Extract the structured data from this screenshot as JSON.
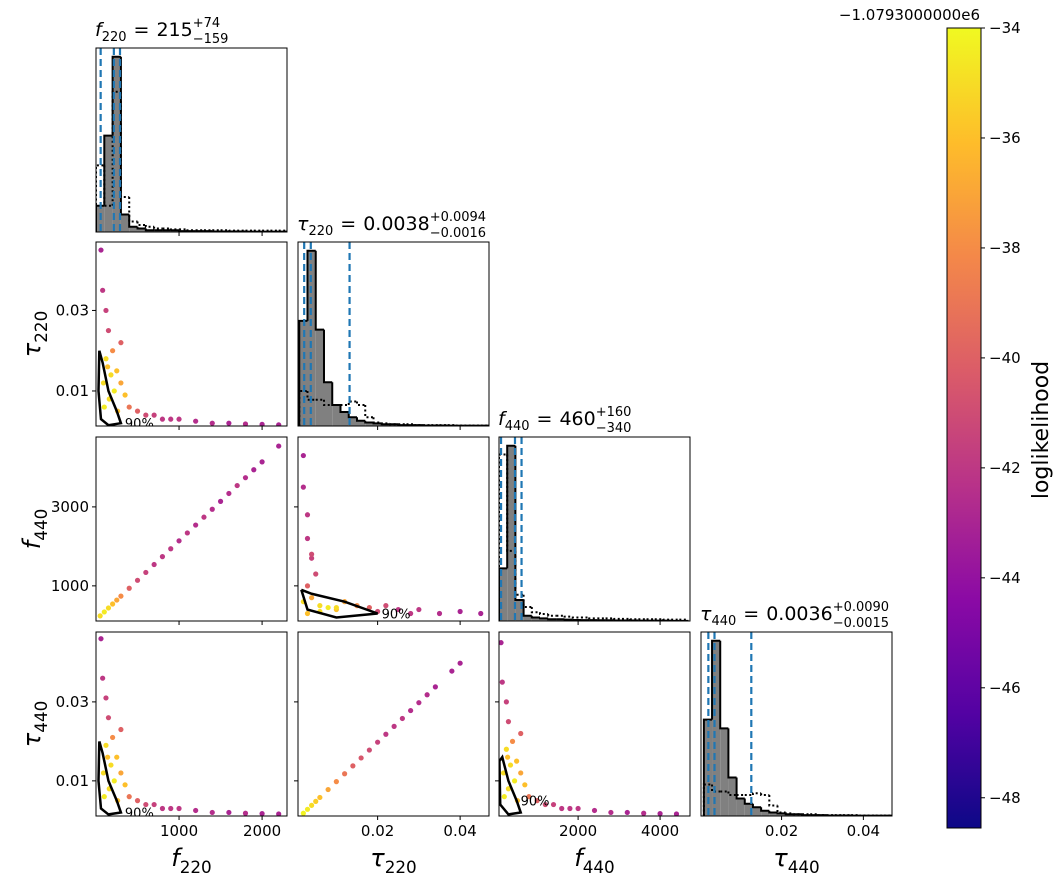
{
  "chart_data": {
    "type": "corner",
    "title_connector": "=",
    "colorbar": {
      "label": "loglikelihood",
      "offset_label": "−1.0793000000e6",
      "lim": [
        -48.55,
        -34
      ],
      "ticks": [
        {
          "value": -48,
          "label": "−48"
        },
        {
          "value": -46,
          "label": "−46"
        },
        {
          "value": -44,
          "label": "−44"
        },
        {
          "value": -42,
          "label": "−42"
        },
        {
          "value": -40,
          "label": "−40"
        },
        {
          "value": -38,
          "label": "−38"
        },
        {
          "value": -36,
          "label": "−36"
        },
        {
          "value": -34,
          "label": "−34"
        }
      ],
      "colormap": "plasma",
      "colormap_colors": [
        "#0d0887",
        "#5302a3",
        "#8b0aa5",
        "#b83289",
        "#db5c68",
        "#f48849",
        "#febd2a",
        "#f0f921"
      ]
    },
    "hist_color": "#808080",
    "quantile_color": "#1f77b4",
    "contour_color": "#000000",
    "parameters": [
      {
        "symbol": "f",
        "subscript": "220",
        "xlim": [
          0,
          2300
        ],
        "xticks": [
          1000,
          2000
        ],
        "median": 215,
        "upper": {
          "value": 74,
          "label": "+74"
        },
        "lower": {
          "value": -159,
          "label": "−159"
        },
        "hist_ylim": [
          0,
          105
        ],
        "bins": [
          0,
          100,
          200,
          300,
          400,
          500,
          600,
          700,
          800,
          900,
          1000,
          1100,
          1200,
          1300,
          1400,
          1500,
          1600,
          1700,
          1800,
          1900,
          2000,
          2100,
          2200,
          2300
        ],
        "counts": [
          15,
          55,
          100,
          10,
          3,
          2,
          1,
          1,
          1,
          1,
          0.5,
          0.5,
          0.5,
          0.5,
          0.3,
          0.3,
          0.3,
          0.3,
          0.2,
          0.2,
          0.2,
          0.2,
          0.2
        ],
        "prior_counts": [
          38,
          15,
          80,
          20,
          6,
          4,
          3,
          2,
          2,
          1.5,
          1.5,
          1,
          1,
          1,
          1,
          1,
          0.8,
          0.8,
          0.8,
          0.8,
          0.8,
          0.8,
          0.8
        ]
      },
      {
        "symbol": "τ",
        "subscript": "220",
        "xlim": [
          0.0007,
          0.047
        ],
        "xticks": [
          0.02,
          0.04
        ],
        "ylim": [
          0.0013,
          0.047
        ],
        "yticks": [
          0.01,
          0.03
        ],
        "median": 0.0038,
        "upper": {
          "value": 0.0094,
          "label": "+0.0094"
        },
        "lower": {
          "value": -0.0016,
          "label": "−0.0016"
        },
        "hist_ylim": [
          0,
          105
        ],
        "bins": [
          0.001,
          0.003,
          0.005,
          0.007,
          0.009,
          0.011,
          0.013,
          0.015,
          0.017,
          0.019,
          0.021,
          0.023,
          0.025,
          0.027,
          0.029,
          0.031,
          0.033,
          0.035,
          0.037,
          0.039,
          0.041,
          0.043,
          0.045,
          0.047
        ],
        "counts": [
          60,
          100,
          55,
          25,
          12,
          8,
          5,
          3,
          2,
          1.5,
          1,
          1,
          0.5,
          0.5,
          0.5,
          0.3,
          0.3,
          0.3,
          0.2,
          0.2,
          0.2,
          0.2,
          0.2
        ],
        "prior_counts": [
          20,
          15,
          15,
          12,
          12,
          12,
          14,
          12,
          5,
          2,
          1.5,
          1,
          1,
          1,
          0.5,
          0.5,
          0.5,
          0.5,
          0.5,
          0.3,
          0.3,
          0.3,
          0.3
        ]
      },
      {
        "symbol": "f",
        "subscript": "440",
        "xlim": [
          70,
          4730
        ],
        "xticks": [
          2000,
          4000
        ],
        "ylim": [
          110,
          4770
        ],
        "yticks": [
          1000,
          3000
        ],
        "median": 460,
        "upper": {
          "value": 160,
          "label": "+160"
        },
        "lower": {
          "value": -340,
          "label": "−340"
        },
        "hist_ylim": [
          0,
          105
        ],
        "bins": [
          70,
          270,
          470,
          670,
          870,
          1070,
          1270,
          1470,
          1670,
          1870,
          2070,
          2270,
          2470,
          2670,
          2870,
          3070,
          3270,
          3470,
          3670,
          3870,
          4070,
          4270,
          4470,
          4670
        ],
        "counts": [
          30,
          100,
          12,
          3,
          2,
          1.5,
          1,
          1,
          0.8,
          0.6,
          0.5,
          0.5,
          0.4,
          0.4,
          0.3,
          0.3,
          0.3,
          0.2,
          0.2,
          0.2,
          0.2,
          0.1,
          0.1
        ],
        "prior_counts": [
          95,
          40,
          15,
          8,
          5,
          4,
          3,
          3,
          2.5,
          2,
          2,
          1.5,
          1.5,
          1.5,
          1.2,
          1.2,
          1,
          1,
          1,
          1,
          0.8,
          0.8,
          0.8
        ]
      },
      {
        "symbol": "τ",
        "subscript": "440",
        "xlim": [
          0.0003,
          0.047
        ],
        "xticks": [
          0.02,
          0.04
        ],
        "ylim": [
          0.0011,
          0.0477
        ],
        "yticks": [
          0.01,
          0.03
        ],
        "median": 0.0036,
        "upper": {
          "value": 0.009,
          "label": "+0.0090"
        },
        "lower": {
          "value": -0.0015,
          "label": "−0.0015"
        },
        "hist_ylim": [
          0,
          105
        ],
        "bins": [
          0.001,
          0.003,
          0.005,
          0.007,
          0.009,
          0.011,
          0.013,
          0.015,
          0.017,
          0.019,
          0.021,
          0.023,
          0.025,
          0.027,
          0.029,
          0.031,
          0.033,
          0.035,
          0.037,
          0.039,
          0.041,
          0.043,
          0.045,
          0.047
        ],
        "counts": [
          55,
          100,
          50,
          22,
          10,
          7,
          5,
          3,
          2,
          1.5,
          1,
          1,
          0.5,
          0.5,
          0.5,
          0.3,
          0.3,
          0.3,
          0.2,
          0.2,
          0.2,
          0.2,
          0.2
        ],
        "prior_counts": [
          18,
          14,
          14,
          12,
          12,
          12,
          13,
          12,
          6,
          2,
          1.5,
          1,
          1,
          1,
          0.5,
          0.5,
          0.5,
          0.5,
          0.5,
          0.3,
          0.3,
          0.3,
          0.3
        ]
      }
    ],
    "scatter": [
      [
        {
          "x": [
            80,
            120,
            150,
            200,
            250,
            300,
            350,
            120,
            180,
            220,
            160,
            100,
            260,
            400,
            500,
            600,
            700,
            800,
            900,
            1000,
            1200,
            1400,
            1600,
            1800,
            2000,
            2200,
            90,
            140,
            60,
            300
          ],
          "y": [
            0.035,
            0.03,
            0.025,
            0.02,
            0.015,
            0.012,
            0.009,
            0.018,
            0.014,
            0.01,
            0.008,
            0.006,
            0.005,
            0.006,
            0.005,
            0.004,
            0.004,
            0.003,
            0.003,
            0.003,
            0.0025,
            0.002,
            0.002,
            0.0018,
            0.0017,
            0.0016,
            0.012,
            0.016,
            0.045,
            0.022
          ],
          "c": [
            -42,
            -41.5,
            -41,
            -38,
            -36,
            -37,
            -36,
            -35,
            -35,
            -34.5,
            -35,
            -34.5,
            -36,
            -39,
            -40,
            -41,
            -41.5,
            -42,
            -42,
            -42,
            -42.5,
            -42.5,
            -43,
            -42.5,
            -43,
            -43,
            -35,
            -36,
            -43,
            -40
          ],
          "contour": {
            "label": "90%",
            "x": [
              40,
              30,
              60,
              150,
              300,
              250,
              150,
              80,
              40
            ],
            "y": [
              0.02,
              0.01,
              0.003,
              0.0015,
              0.002,
              0.005,
              0.01,
              0.017,
              0.02
            ]
          }
        }
      ],
      [
        {
          "x": [
            50,
            100,
            150,
            200,
            250,
            300,
            400,
            500,
            600,
            700,
            800,
            900,
            1000,
            1100,
            1200,
            1300,
            1400,
            1500,
            1600,
            1700,
            1800,
            1900,
            2000,
            2200
          ],
          "y": [
            240,
            340,
            440,
            540,
            640,
            740,
            940,
            1140,
            1340,
            1540,
            1740,
            1940,
            2140,
            2340,
            2540,
            2740,
            2940,
            3140,
            3340,
            3540,
            3740,
            3940,
            4140,
            4540
          ],
          "c": [
            -35,
            -34.5,
            -35,
            -36,
            -37,
            -38,
            -40,
            -41,
            -41.5,
            -42,
            -42,
            -42,
            -42.5,
            -42,
            -42.5,
            -42,
            -42.5,
            -43,
            -42.5,
            -42,
            -42.5,
            -43,
            -43,
            -43
          ]
        },
        {
          "x": [
            0.002,
            0.002,
            0.003,
            0.003,
            0.004,
            0.005,
            0.003,
            0.004,
            0.006,
            0.008,
            0.01,
            0.012,
            0.015,
            0.018,
            0.02,
            0.022,
            0.025,
            0.028,
            0.03,
            0.035,
            0.04,
            0.045,
            0.006,
            0.01,
            0.004,
            0.002,
            0.003
          ],
          "y": [
            4300,
            3500,
            2800,
            2200,
            1700,
            1300,
            1000,
            700,
            500,
            450,
            400,
            600,
            500,
            450,
            350,
            500,
            400,
            300,
            400,
            300,
            350,
            300,
            350,
            450,
            1800,
            600,
            300
          ],
          "c": [
            -43,
            -42.5,
            -42,
            -42,
            -41.5,
            -41,
            -40,
            -37,
            -35,
            -34.5,
            -36,
            -37,
            -38,
            -40,
            -41,
            -41,
            -42,
            -42,
            -42,
            -42.5,
            -43,
            -43,
            -35,
            -35,
            -41,
            -35,
            -36
          ],
          "contour": {
            "label": "90%",
            "x": [
              0.0015,
              0.003,
              0.01,
              0.02,
              0.012,
              0.004,
              0.0015
            ],
            "y": [
              900,
              400,
              200,
              300,
              600,
              800,
              900
            ]
          }
        }
      ],
      [
        {
          "x": [
            80,
            120,
            150,
            200,
            250,
            300,
            350,
            120,
            180,
            220,
            160,
            100,
            260,
            400,
            500,
            600,
            700,
            800,
            900,
            1000,
            1200,
            1400,
            1600,
            1800,
            2000,
            2200,
            90,
            140,
            60,
            300
          ],
          "y": [
            0.036,
            0.031,
            0.026,
            0.021,
            0.016,
            0.012,
            0.009,
            0.019,
            0.014,
            0.01,
            0.008,
            0.006,
            0.005,
            0.006,
            0.005,
            0.004,
            0.004,
            0.003,
            0.003,
            0.003,
            0.0025,
            0.002,
            0.002,
            0.0018,
            0.0017,
            0.0016,
            0.012,
            0.016,
            0.046,
            0.023
          ],
          "c": [
            -42,
            -41.5,
            -41,
            -38,
            -36,
            -37,
            -36,
            -35,
            -35,
            -34.5,
            -35,
            -34.5,
            -36,
            -39,
            -40,
            -41,
            -41.5,
            -42,
            -42,
            -42,
            -42.5,
            -42.5,
            -43,
            -42.5,
            -43,
            -43,
            -35,
            -36,
            -43,
            -40
          ],
          "contour": {
            "label": "90%",
            "x": [
              40,
              30,
              60,
              150,
              300,
              250,
              150,
              80,
              40
            ],
            "y": [
              0.02,
              0.01,
              0.003,
              0.0015,
              0.002,
              0.005,
              0.01,
              0.017,
              0.02
            ]
          }
        },
        {
          "x": [
            0.002,
            0.003,
            0.004,
            0.005,
            0.006,
            0.008,
            0.01,
            0.012,
            0.014,
            0.016,
            0.018,
            0.02,
            0.022,
            0.024,
            0.026,
            0.028,
            0.03,
            0.032,
            0.034,
            0.038,
            0.04
          ],
          "y": [
            0.0018,
            0.0028,
            0.0038,
            0.0048,
            0.0058,
            0.0078,
            0.0098,
            0.0118,
            0.0138,
            0.0158,
            0.0178,
            0.0198,
            0.0218,
            0.0238,
            0.0258,
            0.0278,
            0.0298,
            0.0318,
            0.0338,
            0.0378,
            0.0398
          ],
          "c": [
            -34.2,
            -34.5,
            -35,
            -35.5,
            -36,
            -37,
            -38,
            -39,
            -40,
            -40.5,
            -41,
            -41.5,
            -42,
            -42,
            -42,
            -42.5,
            -42.5,
            -42.5,
            -43,
            -43,
            -43
          ]
        },
        {
          "x": [
            150,
            250,
            300,
            400,
            500,
            600,
            700,
            250,
            350,
            450,
            300,
            200,
            520,
            800,
            1000,
            1200,
            1400,
            1600,
            1800,
            2000,
            2400,
            2800,
            3200,
            3600,
            4000,
            4400,
            180,
            280,
            120,
            600
          ],
          "y": [
            0.035,
            0.03,
            0.025,
            0.02,
            0.015,
            0.012,
            0.009,
            0.018,
            0.014,
            0.01,
            0.008,
            0.006,
            0.005,
            0.006,
            0.005,
            0.004,
            0.004,
            0.003,
            0.003,
            0.003,
            0.0025,
            0.002,
            0.002,
            0.0018,
            0.0017,
            0.0016,
            0.012,
            0.016,
            0.045,
            0.022
          ],
          "c": [
            -42,
            -41.5,
            -41,
            -38,
            -36,
            -37,
            -36,
            -35,
            -35,
            -34.5,
            -35,
            -34.5,
            -36,
            -39,
            -40,
            -41,
            -41.5,
            -42,
            -42,
            -42,
            -42.5,
            -42.5,
            -43,
            -42.5,
            -43,
            -43,
            -35,
            -36,
            -43,
            -40
          ],
          "contour": {
            "label": "90%",
            "x": [
              80,
              100,
              300,
              600,
              500,
              300,
              150,
              80
            ],
            "y": [
              0.015,
              0.004,
              0.0015,
              0.002,
              0.005,
              0.01,
              0.016,
              0.015
            ]
          }
        }
      ]
    ]
  }
}
